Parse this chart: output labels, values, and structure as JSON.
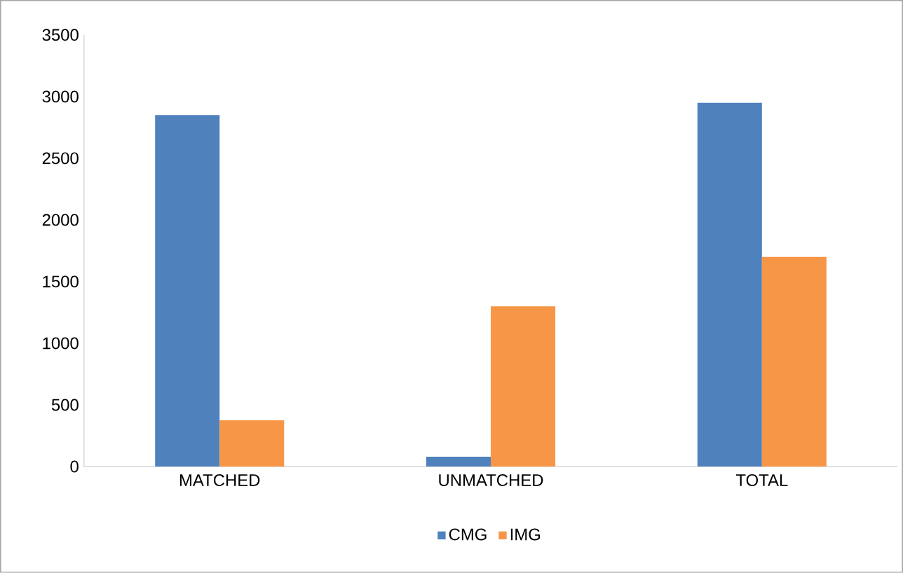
{
  "chart_data": {
    "type": "bar",
    "categories": [
      "MATCHED",
      "UNMATCHED",
      "TOTAL"
    ],
    "series": [
      {
        "name": "CMG",
        "color": "#4f81bd",
        "values": [
          2850,
          80,
          2950
        ]
      },
      {
        "name": "IMG",
        "color": "#f79646",
        "values": [
          375,
          1300,
          1700
        ]
      }
    ],
    "ylim": [
      0,
      3500
    ],
    "yticks": [
      0,
      500,
      1000,
      1500,
      2000,
      2500,
      3000,
      3500
    ],
    "grid": false,
    "legend": "bottom"
  }
}
